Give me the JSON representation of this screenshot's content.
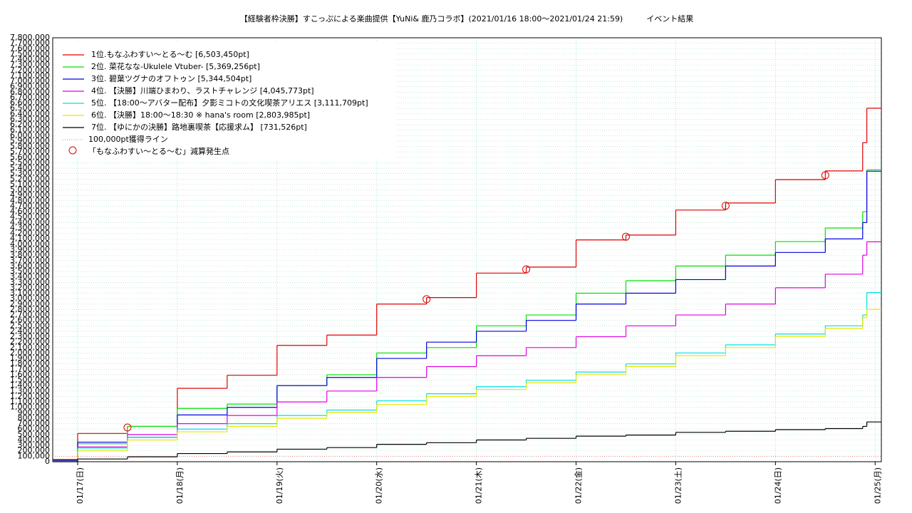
{
  "chart_data": {
    "type": "step",
    "title": "【経験者枠決勝】すこっぷによる楽曲提供【YuNi& 鹿乃コラボ】(2021/01/16 18:00〜2021/01/24 21:59)　　　イベント結果",
    "x": [
      "2021-01-16T18:00",
      "2021-01-17T00:00",
      "2021-01-17T12:00",
      "2021-01-18T00:00",
      "2021-01-18T12:00",
      "2021-01-19T00:00",
      "2021-01-19T12:00",
      "2021-01-20T00:00",
      "2021-01-20T12:00",
      "2021-01-21T00:00",
      "2021-01-21T12:00",
      "2021-01-22T00:00",
      "2021-01-22T12:00",
      "2021-01-23T00:00",
      "2021-01-23T12:00",
      "2021-01-24T00:00",
      "2021-01-24T12:00",
      "2021-01-24T21:00",
      "2021-01-24T22:00"
    ],
    "series": [
      {
        "name": "1位.もなふわすい〜とる〜む [6,503,450pt]",
        "color": "#e00000",
        "values": [
          40000,
          520000,
          650000,
          1350000,
          1590000,
          2140000,
          2330000,
          2900000,
          3020000,
          3470000,
          3580000,
          4080000,
          4170000,
          4630000,
          4760000,
          5190000,
          5350000,
          5870000,
          6503450
        ]
      },
      {
        "name": "2位. 菜花なな-Ukulele Vtuber- [5,369,256pt]",
        "color": "#00e000",
        "values": [
          20000,
          330000,
          650000,
          980000,
          1060000,
          1400000,
          1600000,
          2000000,
          2100000,
          2500000,
          2700000,
          3100000,
          3330000,
          3600000,
          3800000,
          4050000,
          4300000,
          4600000,
          5369256
        ]
      },
      {
        "name": "3位. 碧葉ツグナのオフトゥン [5,344,504pt]",
        "color": "#0000e0",
        "values": [
          30000,
          360000,
          450000,
          860000,
          1000000,
          1400000,
          1550000,
          1900000,
          2200000,
          2400000,
          2600000,
          2900000,
          3100000,
          3350000,
          3600000,
          3850000,
          4100000,
          4400000,
          5344504
        ]
      },
      {
        "name": "4位. 【決勝】川端ひまわり、ラストチャレンジ [4,045,773pt]",
        "color": "#e000e0",
        "values": [
          10000,
          270000,
          500000,
          700000,
          850000,
          1100000,
          1300000,
          1550000,
          1750000,
          1950000,
          2100000,
          2300000,
          2500000,
          2700000,
          2900000,
          3200000,
          3450000,
          3800000,
          4045773
        ]
      },
      {
        "name": "5位. 【18:00〜アバター配布】夕影ミコトの文化喫茶アリエス [3,111,709pt]",
        "color": "#00e0e0",
        "values": [
          5000,
          250000,
          450000,
          600000,
          700000,
          850000,
          950000,
          1120000,
          1250000,
          1380000,
          1500000,
          1650000,
          1800000,
          2000000,
          2150000,
          2350000,
          2500000,
          2700000,
          3111709
        ]
      },
      {
        "name": "6位. 【決勝】18:00〜18:30 ※ hana's room [2,803,985pt]",
        "color": "#e8e800",
        "values": [
          3000,
          200000,
          400000,
          550000,
          650000,
          800000,
          900000,
          1050000,
          1200000,
          1330000,
          1450000,
          1600000,
          1750000,
          1950000,
          2100000,
          2300000,
          2450000,
          2650000,
          2803985
        ]
      },
      {
        "name": "7位. 【ゆにかの決勝】路地裏喫茶【応援求ム】 [731,526pt]",
        "color": "#000000",
        "values": [
          0,
          50000,
          90000,
          150000,
          180000,
          230000,
          260000,
          320000,
          350000,
          400000,
          430000,
          470000,
          490000,
          540000,
          560000,
          590000,
          610000,
          650000,
          731526
        ]
      }
    ],
    "reference_line": {
      "name": "100,000pt獲得ライン",
      "value": 100000,
      "color": "#e08080"
    },
    "markers": {
      "name": "「もなふわすい〜とる〜む」減算発生点",
      "color": "#e00000",
      "x": [
        "2021-01-17T12:00",
        "2021-01-20T12:00",
        "2021-01-21T12:00",
        "2021-01-22T12:00",
        "2021-01-23T12:00",
        "2021-01-24T12:00"
      ],
      "values": [
        630000,
        2990000,
        3540000,
        4140000,
        4710000,
        5270000
      ]
    },
    "xlim": [
      "2021-01-16T18:00",
      "2021-01-25T01:30"
    ],
    "xticks": [
      {
        "value": "2021-01-17T00:00",
        "label": "01/17(日)"
      },
      {
        "value": "2021-01-18T00:00",
        "label": "01/18(月)"
      },
      {
        "value": "2021-01-19T00:00",
        "label": "01/19(火)"
      },
      {
        "value": "2021-01-20T00:00",
        "label": "01/20(水)"
      },
      {
        "value": "2021-01-21T00:00",
        "label": "01/21(木)"
      },
      {
        "value": "2021-01-22T00:00",
        "label": "01/22(金)"
      },
      {
        "value": "2021-01-23T00:00",
        "label": "01/23(土)"
      },
      {
        "value": "2021-01-24T00:00",
        "label": "01/24(日)"
      },
      {
        "value": "2021-01-25T00:00",
        "label": "01/25(月)"
      }
    ],
    "ylim": [
      0,
      7800000
    ],
    "yticks": [
      0,
      {
        "value": 100000,
        "label": "100,000"
      },
      {
        "value": 200000,
        "label": "200,000"
      },
      {
        "value": 300000,
        "label": "300,000"
      },
      {
        "value": 400000,
        "label": "400,000"
      },
      {
        "value": 500000,
        "label": "500,000"
      },
      {
        "value": 600000,
        "label": "600,000"
      },
      {
        "value": 700000,
        "label": "700,000"
      },
      {
        "value": 800000,
        "label": "800,000"
      },
      {
        "value": 900000,
        "label": "900,000"
      },
      {
        "value": 1000000,
        "label": "1,000,000"
      },
      {
        "value": 1100000,
        "label": "1,100,000"
      },
      {
        "value": 1200000,
        "label": "1,200,000"
      },
      {
        "value": 1300000,
        "label": "1,300,000"
      },
      {
        "value": 1400000,
        "label": "1,400,000"
      },
      {
        "value": 1500000,
        "label": "1,500,000"
      },
      {
        "value": 1600000,
        "label": "1,600,000"
      },
      {
        "value": 1700000,
        "label": "1,700,000"
      },
      {
        "value": 1800000,
        "label": "1,800,000"
      },
      {
        "value": 1900000,
        "label": "1,900,000"
      },
      {
        "value": 2000000,
        "label": "2,000,000"
      },
      {
        "value": 2100000,
        "label": "2,100,000"
      },
      {
        "value": 2200000,
        "label": "2,200,000"
      },
      {
        "value": 2300000,
        "label": "2,300,000"
      },
      {
        "value": 2400000,
        "label": "2,400,000"
      },
      {
        "value": 2500000,
        "label": "2,500,000"
      },
      {
        "value": 2600000,
        "label": "2,600,000"
      },
      {
        "value": 2700000,
        "label": "2,700,000"
      },
      {
        "value": 2800000,
        "label": "2,800,000"
      },
      {
        "value": 2900000,
        "label": "2,900,000"
      },
      {
        "value": 3000000,
        "label": "3,000,000"
      },
      {
        "value": 3100000,
        "label": "3,100,000"
      },
      {
        "value": 3200000,
        "label": "3,200,000"
      },
      {
        "value": 3300000,
        "label": "3,300,000"
      },
      {
        "value": 3400000,
        "label": "3,400,000"
      },
      {
        "value": 3500000,
        "label": "3,500,000"
      },
      {
        "value": 3600000,
        "label": "3,600,000"
      },
      {
        "value": 3700000,
        "label": "3,700,000"
      },
      {
        "value": 3800000,
        "label": "3,800,000"
      },
      {
        "value": 3900000,
        "label": "3,900,000"
      },
      {
        "value": 4000000,
        "label": "4,000,000"
      },
      {
        "value": 4100000,
        "label": "4,100,000"
      },
      {
        "value": 4200000,
        "label": "4,200,000"
      },
      {
        "value": 4300000,
        "label": "4,300,000"
      },
      {
        "value": 4400000,
        "label": "4,400,000"
      },
      {
        "value": 4500000,
        "label": "4,500,000"
      },
      {
        "value": 4600000,
        "label": "4,600,000"
      },
      {
        "value": 4700000,
        "label": "4,700,000"
      },
      {
        "value": 4800000,
        "label": "4,800,000"
      },
      {
        "value": 4900000,
        "label": "4,900,000"
      },
      {
        "value": 5000000,
        "label": "5,000,000"
      },
      {
        "value": 5100000,
        "label": "5,100,000"
      },
      {
        "value": 5200000,
        "label": "5,200,000"
      },
      {
        "value": 5300000,
        "label": "5,300,000"
      },
      {
        "value": 5400000,
        "label": "5,400,000"
      },
      {
        "value": 5500000,
        "label": "5,500,000"
      },
      {
        "value": 5600000,
        "label": "5,600,000"
      },
      {
        "value": 5700000,
        "label": "5,700,000"
      },
      {
        "value": 5800000,
        "label": "5,800,000"
      },
      {
        "value": 5900000,
        "label": "5,900,000"
      },
      {
        "value": 6000000,
        "label": "6,000,000"
      },
      {
        "value": 6100000,
        "label": "6,100,000"
      },
      {
        "value": 6200000,
        "label": "6,200,000"
      },
      {
        "value": 6300000,
        "label": "6,300,000"
      },
      {
        "value": 6400000,
        "label": "6,400,000"
      },
      {
        "value": 6500000,
        "label": "6,500,000"
      },
      {
        "value": 6600000,
        "label": "6,600,000"
      },
      {
        "value": 6700000,
        "label": "6,700,000"
      },
      {
        "value": 6800000,
        "label": "6,800,000"
      },
      {
        "value": 6900000,
        "label": "6,900,000"
      },
      {
        "value": 7000000,
        "label": "7,000,000"
      },
      {
        "value": 7100000,
        "label": "7,100,000"
      },
      {
        "value": 7200000,
        "label": "7,200,000"
      },
      {
        "value": 7300000,
        "label": "7,300,000"
      },
      {
        "value": 7400000,
        "label": "7,400,000"
      },
      {
        "value": 7500000,
        "label": "7,500,000"
      },
      {
        "value": 7600000,
        "label": "7,600,000"
      },
      {
        "value": 7700000,
        "label": "7,700,000"
      },
      {
        "value": 7800000,
        "label": "7,800,000"
      }
    ],
    "grid": true,
    "legend": "upper left"
  }
}
